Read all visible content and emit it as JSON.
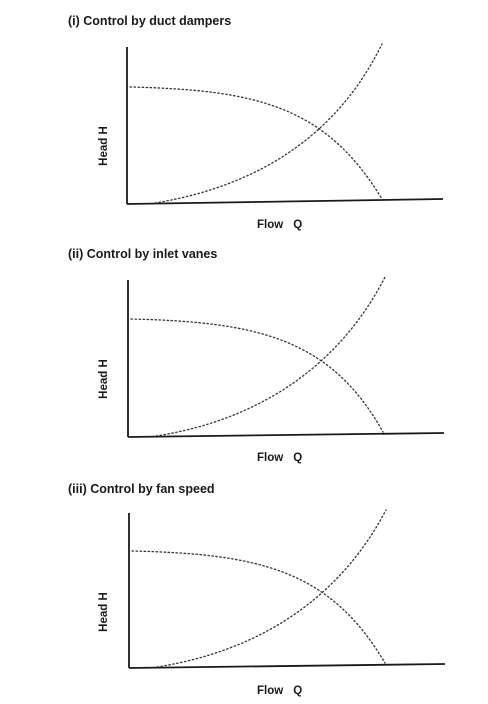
{
  "panels": [
    {
      "title": "(i)   Control by duct dampers",
      "ylabel": "Head  H",
      "xlabel_word": "Flow",
      "xlabel_symbol": "Q"
    },
    {
      "title": "(ii)   Control by inlet vanes",
      "ylabel": "Head  H",
      "xlabel_word": "Flow",
      "xlabel_symbol": "Q"
    },
    {
      "title": "(iii)   Control by fan speed",
      "ylabel": "Head  H",
      "xlabel_word": "Flow",
      "xlabel_symbol": "Q"
    }
  ]
}
